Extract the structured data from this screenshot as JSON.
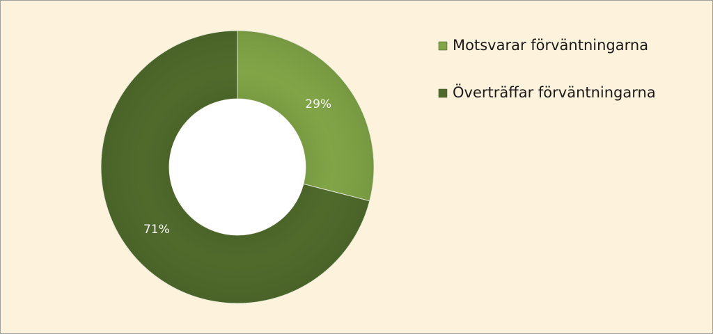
{
  "chart_data": {
    "type": "donut",
    "categories": [
      "Motsvarar förväntningarna",
      "Överträffar förväntningarna"
    ],
    "values": [
      29,
      71
    ],
    "value_labels": [
      "29%",
      "71%"
    ],
    "colors": [
      "#80a446",
      "#4f6a2b"
    ],
    "legend": "right"
  }
}
